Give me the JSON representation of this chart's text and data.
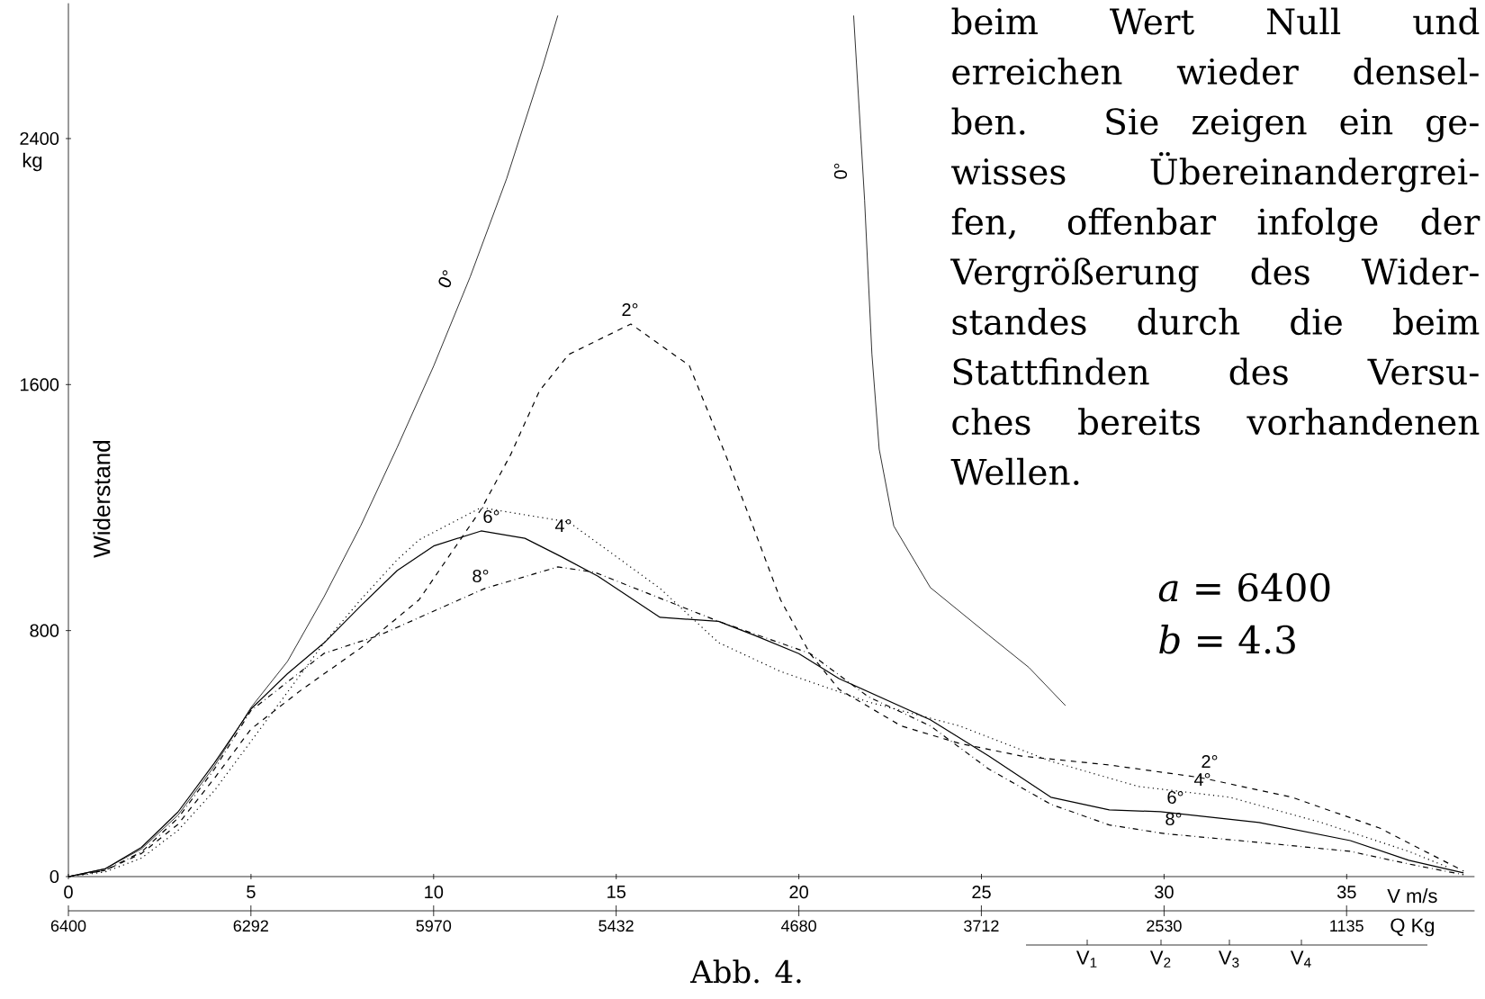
{
  "chart_data": {
    "type": "line",
    "ylabel": "Widerstand",
    "xlabel": "V  m/s",
    "xlim": [
      0,
      38.5
    ],
    "ylim": [
      0,
      2840
    ],
    "xticks": [
      0,
      5,
      10,
      15,
      20,
      25,
      30,
      35
    ],
    "yticks": [
      0,
      800,
      1600,
      2400
    ],
    "marker": "none",
    "series": [
      {
        "color": "#000000",
        "line_style": "solid",
        "x": [
          0,
          1,
          2,
          3,
          4,
          5,
          6,
          7,
          8,
          9,
          10,
          11,
          12,
          13,
          13.4,
          17,
          21.5,
          21.8,
          22.0,
          22.2,
          22.6,
          23.6,
          25.2,
          26.3,
          27.3
        ],
        "values": [
          0,
          25,
          90,
          200,
          360,
          550,
          700,
          910,
          1140,
          1395,
          1660,
          1950,
          2270,
          2640,
          2800,
          null,
          2800,
          2200,
          1700,
          1390,
          1140,
          940,
          785,
          680,
          556
        ]
      },
      {
        "color": "#000000",
        "line_style": "dashed",
        "x": [
          0,
          1,
          2,
          3,
          4,
          5,
          6.4,
          8,
          9.6,
          11.3,
          12.1,
          12.9,
          13.7,
          15.4,
          17,
          18,
          18.7,
          19.5,
          20.3,
          21.1,
          22.8,
          24.4,
          26.1,
          28.5,
          31,
          33.5,
          35.9,
          38.2
        ],
        "values": [
          0,
          20,
          75,
          170,
          320,
          480,
          609,
          743,
          900,
          1194,
          1370,
          1580,
          1698,
          1797,
          1662,
          1370,
          1153,
          900,
          726,
          609,
          490,
          433,
          392,
          363,
          322,
          258,
          158,
          18
        ]
      },
      {
        "color": "#000000",
        "line_style": "dotted",
        "x": [
          0,
          1,
          2,
          3,
          4,
          5,
          6,
          7,
          8,
          9,
          9.6,
          11.3,
          13.7,
          16.2,
          17.8,
          19.5,
          21.9,
          24.4,
          26.9,
          29.3,
          31.8,
          34.3,
          36.7,
          37.8
        ],
        "values": [
          0,
          15,
          60,
          150,
          280,
          440,
          600,
          760,
          900,
          1030,
          1095,
          1200,
          1153,
          937,
          761,
          667,
          568,
          490,
          375,
          293,
          258,
          176,
          82,
          29
        ]
      },
      {
        "color": "#000000",
        "line_style": "solid",
        "x": [
          0,
          1,
          2,
          3,
          4,
          5,
          6,
          7,
          8,
          9,
          10,
          11.3,
          12.5,
          13.5,
          14.5,
          16.2,
          17.8,
          18.8,
          20,
          21.1,
          23.6,
          25.2,
          26.9,
          28.5,
          29.9,
          32.6,
          35.1,
          36.7,
          38.2
        ],
        "values": [
          0,
          25,
          95,
          210,
          370,
          545,
          660,
          760,
          880,
          995,
          1075,
          1124,
          1100,
          1040,
          977,
          843,
          830,
          784,
          725,
          644,
          510,
          392,
          258,
          217,
          211,
          176,
          117,
          53,
          12
        ]
      },
      {
        "color": "#000000",
        "line_style": "dashdot",
        "x": [
          0,
          1,
          2,
          3,
          4,
          5,
          7,
          8.5,
          11.4,
          13.4,
          14.4,
          17.8,
          20.3,
          21.9,
          23.6,
          25.2,
          26.9,
          28.5,
          30,
          32.6,
          35.1,
          36.7,
          38.2
        ],
        "values": [
          0,
          20,
          80,
          190,
          350,
          540,
          726,
          784,
          937,
          1007,
          990,
          830,
          726,
          585,
          490,
          350,
          235,
          168,
          140,
          111,
          82,
          41,
          6
        ]
      }
    ],
    "annotations": [
      "0°",
      "0°",
      "2°",
      "6°",
      "4°",
      "8°",
      "2°",
      "4°",
      "6°",
      "8°",
      "kg",
      "beim Wert Null und",
      "erreichen wieder densel-",
      "ben. Sie zeigen ein ge-",
      "wisses Übereinandergrei-",
      "fen, offenbar infolge der",
      "Vergrößerung des Wider-",
      "standes durch die beim",
      "Stattfinden des Versu-",
      "ches bereits vorhandenen",
      "Wellen.",
      "*a* = 6400",
      "*b* = 4.3",
      "Abb. 4.",
      "6400",
      "6292",
      "5970",
      "5432",
      "4680",
      "3712",
      "2530",
      "1135",
      "Q  Kg",
      "V$_{1}$",
      "V$_{2}$",
      "V$_{3}$",
      "V$_{4}$"
    ]
  }
}
